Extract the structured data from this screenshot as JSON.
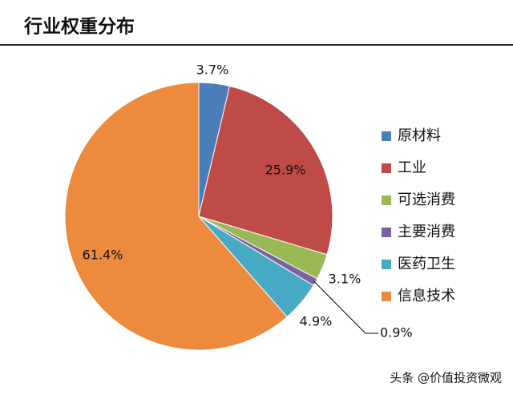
{
  "chart_data": {
    "type": "pie",
    "title": "行业权重分布",
    "categories": [
      "原材料",
      "工业",
      "可选消费",
      "主要消费",
      "医药卫生",
      "信息技术"
    ],
    "values": [
      3.7,
      25.9,
      3.1,
      0.9,
      4.9,
      61.4
    ],
    "value_labels": [
      "3.7%",
      "25.9%",
      "3.1%",
      "0.9%",
      "4.9%",
      "61.4%"
    ],
    "colors": [
      "#4a7ebb",
      "#be4b48",
      "#98b954",
      "#7d60a0",
      "#46aac5",
      "#ec8a3e"
    ],
    "legend": "right"
  },
  "watermark": "头条 @价值投资微观"
}
